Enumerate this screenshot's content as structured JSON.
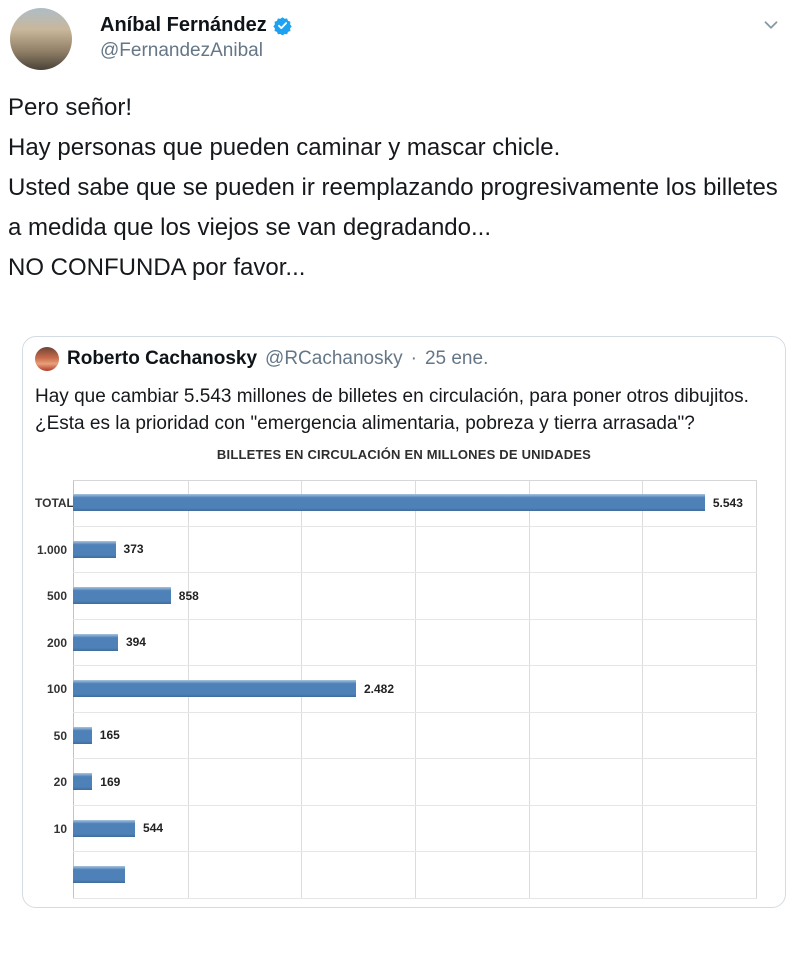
{
  "colors": {
    "accent_blue": "#1da1f2",
    "bar_blue": "#4e81b8",
    "text_primary": "#0f1419",
    "text_secondary": "#657786",
    "card_border": "#d3dce3",
    "gridline": "#dcdcdc"
  },
  "header": {
    "name": "Aníbal Fernández",
    "handle": "@FernandezAnibal",
    "verified": true
  },
  "tweet": {
    "lines": [
      "Pero señor!",
      "Hay personas que pueden caminar y mascar chicle.",
      "Usted sabe que se pueden ir reemplazando progresivamente los billetes a medida que los viejos se van degradando...",
      "NO CONFUNDA por favor..."
    ]
  },
  "quote": {
    "name": "Roberto Cachanosky",
    "handle": "@RCachanosky",
    "separator": "·",
    "date": "25 ene.",
    "lines": [
      "Hay que cambiar 5.543 millones de billetes en circulación, para poner otros dibujitos.",
      "¿Esta es la prioridad con \"emergencia alimentaria, pobreza y tierra arrasada\"?"
    ]
  },
  "chart_data": {
    "type": "bar",
    "orientation": "horizontal",
    "title": "BILLETES EN CIRCULACIÓN EN MILLONES DE UNIDADES",
    "categories": [
      "TOTAL",
      "1.000",
      "500",
      "200",
      "100",
      "50",
      "20",
      "10"
    ],
    "values": [
      5543,
      373,
      858,
      394,
      2482,
      165,
      169,
      544
    ],
    "value_labels": [
      "5.543",
      "373",
      "858",
      "394",
      "2.482",
      "165",
      "169",
      "544"
    ],
    "xlim": [
      0,
      6000
    ],
    "gridline_interval": 1000,
    "grid": true,
    "legend": false,
    "bar_color": "#4e81b8",
    "partial_row": {
      "visible": true,
      "approx_value": 460,
      "label": "",
      "note": "bottom bar cut off by card edge"
    }
  }
}
